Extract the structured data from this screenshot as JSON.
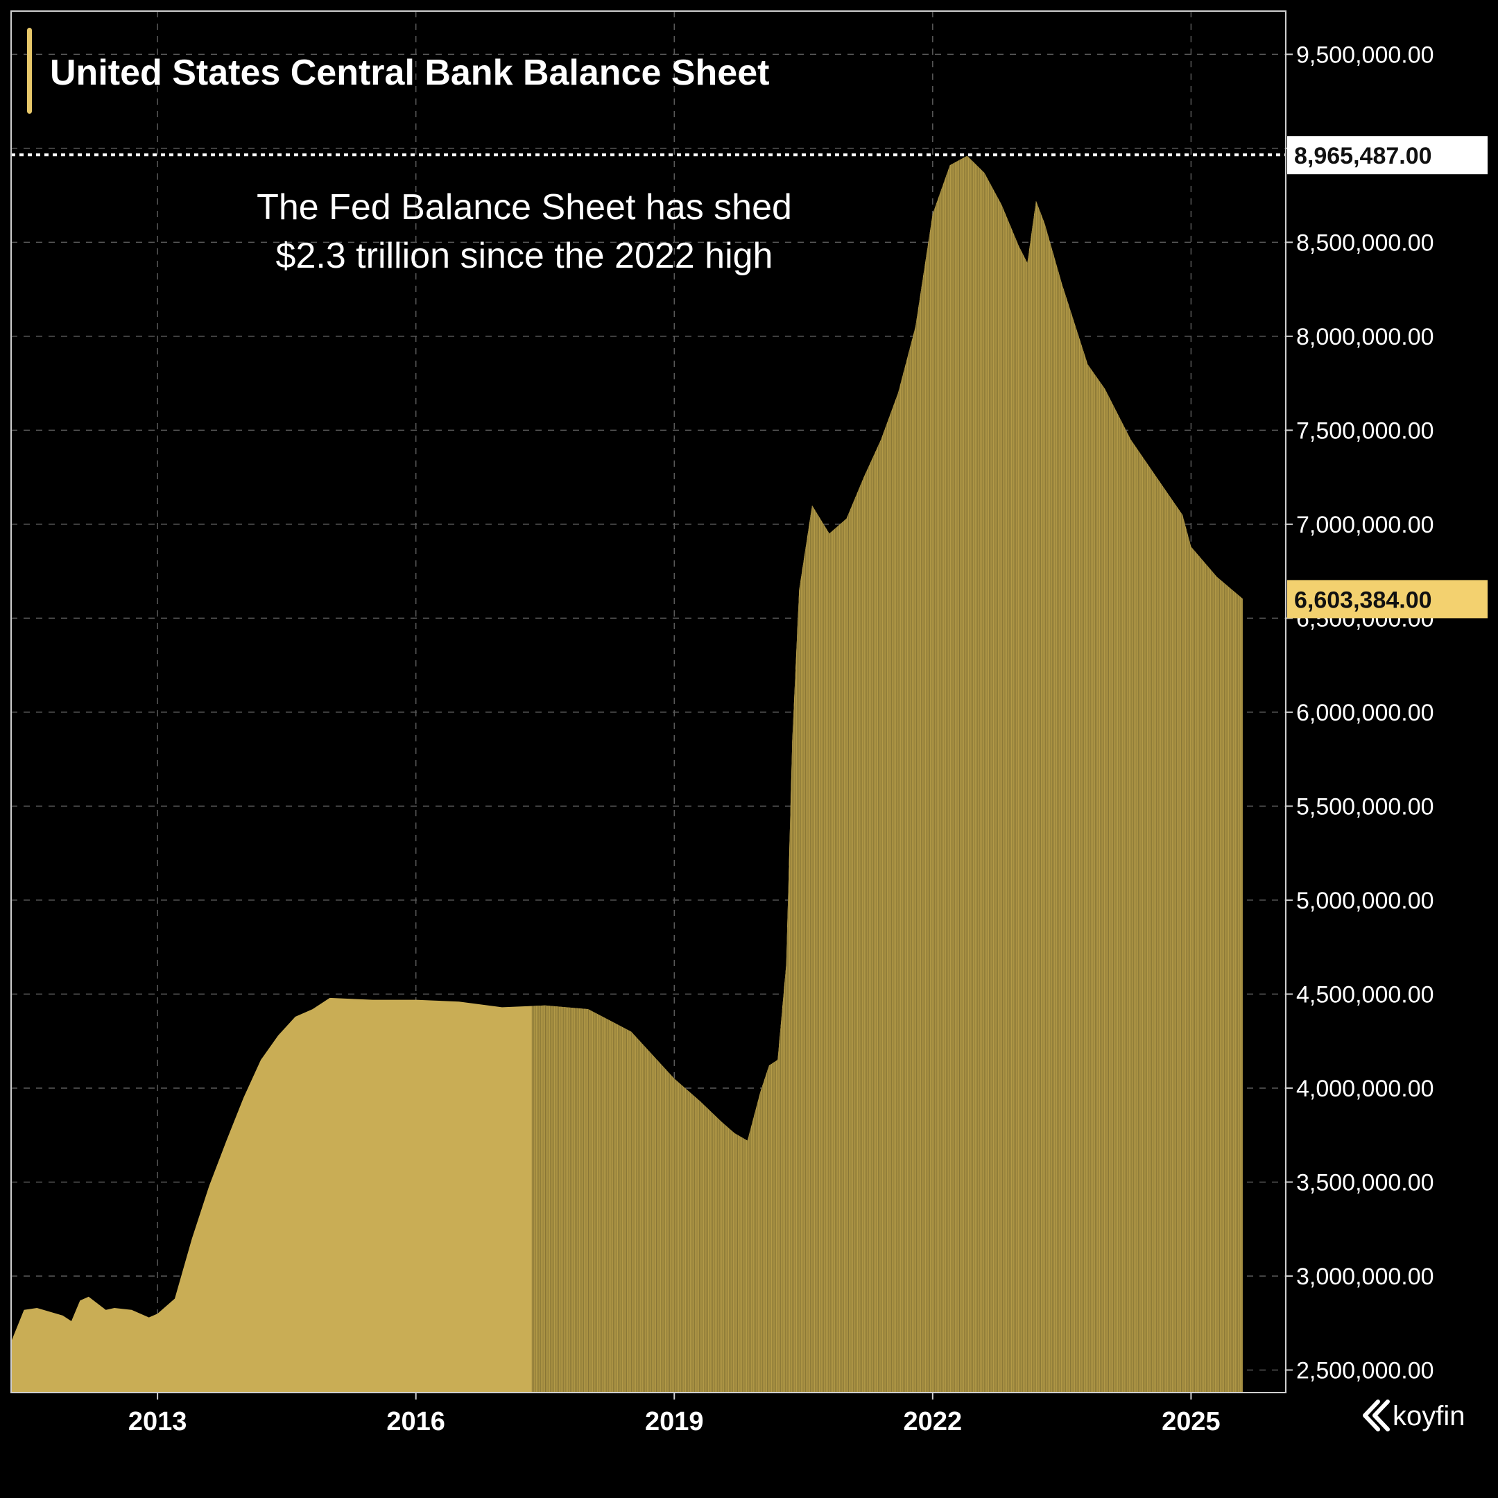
{
  "chart_data": {
    "type": "area",
    "title": "United States Central Bank Balance Sheet",
    "annotation": [
      "The Fed Balance Sheet has shed",
      "$2.3 trillion since the 2022 high"
    ],
    "x_ticks": [
      "2013",
      "2016",
      "2019",
      "2022",
      "2025"
    ],
    "y_ticks": [
      "2,500,000.00",
      "3,000,000.00",
      "3,500,000.00",
      "4,000,000.00",
      "4,500,000.00",
      "5,000,000.00",
      "5,500,000.00",
      "6,000,000.00",
      "6,500,000.00",
      "7,000,000.00",
      "7,500,000.00",
      "8,000,000.00",
      "8,500,000.00",
      "9,000,000.00",
      "9,500,000.00"
    ],
    "ylim": [
      2380000,
      9730000
    ],
    "xlim": [
      2011.3,
      2026.1
    ],
    "grid": true,
    "high_value": 8965487,
    "high_label": "8,965,487.00",
    "last_value": 6603384,
    "last_label": "6,603,384.00",
    "series": [
      {
        "x": [
          2011.3,
          2011.45,
          2011.6,
          2011.9,
          2012.0,
          2012.1,
          2012.2,
          2012.4,
          2012.5,
          2012.7,
          2012.9,
          2013.0,
          2013.2,
          2013.4,
          2013.6,
          2013.8,
          2014.0,
          2014.2,
          2014.4,
          2014.6,
          2014.8,
          2015.0,
          2015.5,
          2016.0,
          2016.5,
          2017.0,
          2017.5,
          2018.0,
          2018.5,
          2019.0,
          2019.3,
          2019.55,
          2019.7,
          2019.85,
          2020.0,
          2020.1,
          2020.2,
          2020.3,
          2020.37,
          2020.45,
          2020.6,
          2020.8,
          2021.0,
          2021.2,
          2021.4,
          2021.6,
          2021.8,
          2022.0,
          2022.2,
          2022.4,
          2022.6,
          2022.8,
          2023.0,
          2023.1,
          2023.2,
          2023.3,
          2023.5,
          2023.8,
          2024.0,
          2024.3,
          2024.6,
          2024.9,
          2025.0,
          2025.3,
          2025.6
        ],
        "y": [
          2650000,
          2820000,
          2830000,
          2790000,
          2760000,
          2870000,
          2890000,
          2820000,
          2830000,
          2820000,
          2780000,
          2800000,
          2880000,
          3200000,
          3480000,
          3720000,
          3950000,
          4150000,
          4280000,
          4380000,
          4420000,
          4480000,
          4470000,
          4470000,
          4460000,
          4430000,
          4440000,
          4420000,
          4300000,
          4050000,
          3930000,
          3820000,
          3760000,
          3720000,
          3980000,
          4120000,
          4150000,
          4660000,
          5850000,
          6650000,
          7100000,
          6950000,
          7030000,
          7250000,
          7450000,
          7700000,
          8050000,
          8650000,
          8910000,
          8960000,
          8870000,
          8700000,
          8480000,
          8390000,
          8720000,
          8600000,
          8280000,
          7850000,
          7720000,
          7450000,
          7250000,
          7050000,
          6880000,
          6720000,
          6603384
        ]
      }
    ]
  },
  "brand": {
    "name": "koyfin",
    "icon": "koyfin-logo-icon"
  },
  "colors": {
    "background": "#000000",
    "fill_solid": "#c9ad55",
    "fill_bars": "#b39a47",
    "bar_edge": "#7a6a30",
    "accent": "#e7c76a",
    "high_tag_bg": "#ffffff",
    "last_tag_bg": "#f3d16f",
    "grid": "#5a5a5a"
  }
}
